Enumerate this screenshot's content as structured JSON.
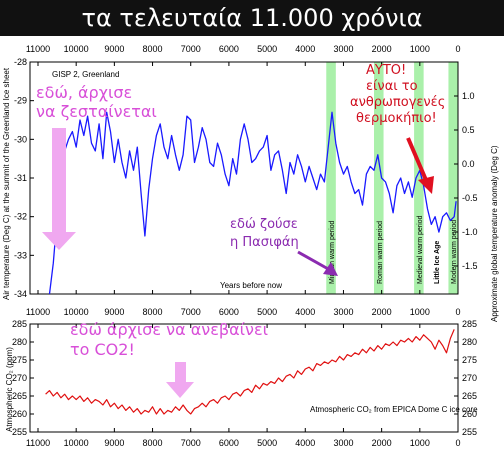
{
  "banner": {
    "title": "τα τελευταία 11.000 χρόνια"
  },
  "top_chart": {
    "inner_label": "GISP 2, Greenland",
    "xlabel": "Years before now",
    "ylabel_left": "Air temperature (Deg C) at the summit of the Greenland Ice sheet",
    "ylabel_right": "Approximate global temperature anomaly (Deg C)",
    "x_ticks": [
      "11000",
      "10000",
      "9000",
      "8000",
      "7000",
      "6000",
      "5000",
      "4000",
      "3000",
      "2000",
      "1000",
      "0"
    ],
    "y_ticks_left": [
      "-28",
      "-29",
      "-30",
      "-31",
      "-32",
      "-33",
      "-34"
    ],
    "y_ticks_right": [
      "1.0",
      "0.5",
      "0.0",
      "-0.5",
      "-1.0",
      "-1.5"
    ],
    "periods": [
      {
        "label": "Minoan warm period",
        "start": 3450,
        "end": 3200,
        "color": "#aaf0aa",
        "text_color": "#000000"
      },
      {
        "label": "Roman warm period",
        "start": 2200,
        "end": 1950,
        "color": "#aaf0aa",
        "text_color": "#000000"
      },
      {
        "label": "Medieval warm period",
        "start": 1150,
        "end": 900,
        "color": "#aaf0aa",
        "text_color": "#000000"
      },
      {
        "label": "Little Ice Age",
        "start": 700,
        "end": 450,
        "color": "#ffffff",
        "text_color": "#0000cc"
      },
      {
        "label": "Modern warm period",
        "start": 250,
        "end": 0,
        "color": "#aaf0aa",
        "text_color": "#000000"
      }
    ]
  },
  "bottom_chart": {
    "ylabel": "Atmospheric CO₂ (ppm)",
    "source": "Atmospheric CO₂ from EPICA Dome C ice core",
    "x_ticks": [
      "11000",
      "10000",
      "9000",
      "8000",
      "7000",
      "6000",
      "5000",
      "4000",
      "3000",
      "2000",
      "1000",
      "0"
    ],
    "y_ticks": [
      "285",
      "280",
      "275",
      "270",
      "265",
      "260",
      "255"
    ]
  },
  "annotations": {
    "warming_line1": "εδώ, άρχισε",
    "warming_line2": "να ζεσταίνεται",
    "pasiphae_line1": "εδώ ζούσε",
    "pasiphae_line2": "η Πασιφάη",
    "anthro_line1": "ΑΥΤΟ!",
    "anthro_line2": "είναι το",
    "anthro_line3": "ανθρωπογενές",
    "anthro_line4": "θερμοκήπιο!",
    "co2_line1": "εδώ άρχισε να ανεβαίνει",
    "co2_line2": "το CO2!"
  },
  "colors": {
    "temp_line": "#1a1aff",
    "co2_line": "#e01010",
    "warm_band": "#aaf0aa",
    "pink_arrow": "#f0a8f0",
    "purple_arrow": "#8b2bb0",
    "red_arrow": "#e01020"
  },
  "chart_data": [
    {
      "type": "line",
      "title": "GISP 2, Greenland",
      "xlabel": "Years before now",
      "ylabel": "Air temperature (Deg C) at the summit of the Greenland Ice sheet",
      "xlim": [
        11000,
        0
      ],
      "ylim": [
        -34,
        -28
      ],
      "series": [
        {
          "name": "GISP 2, Greenland",
          "x": [
            10700,
            10600,
            10500,
            10400,
            10300,
            10200,
            10100,
            10000,
            9900,
            9800,
            9700,
            9600,
            9500,
            9400,
            9300,
            9200,
            9100,
            9000,
            8900,
            8800,
            8700,
            8600,
            8500,
            8400,
            8300,
            8200,
            8100,
            8000,
            7900,
            7800,
            7700,
            7600,
            7500,
            7400,
            7300,
            7200,
            7100,
            7000,
            6900,
            6800,
            6700,
            6600,
            6500,
            6400,
            6300,
            6200,
            6100,
            6000,
            5900,
            5800,
            5700,
            5600,
            5500,
            5400,
            5300,
            5200,
            5100,
            5000,
            4900,
            4800,
            4700,
            4600,
            4500,
            4400,
            4300,
            4200,
            4100,
            4000,
            3900,
            3800,
            3700,
            3600,
            3500,
            3400,
            3300,
            3200,
            3100,
            3000,
            2900,
            2800,
            2700,
            2600,
            2500,
            2400,
            2300,
            2200,
            2100,
            2000,
            1900,
            1800,
            1700,
            1600,
            1500,
            1400,
            1300,
            1200,
            1100,
            1000,
            900,
            800,
            700,
            600,
            500,
            400,
            300,
            200,
            100,
            50
          ],
          "y": [
            -34.0,
            -33.2,
            -32.0,
            -31.0,
            -30.3,
            -30.0,
            -29.8,
            -30.2,
            -29.5,
            -29.9,
            -29.4,
            -30.1,
            -30.3,
            -29.6,
            -30.5,
            -29.3,
            -29.8,
            -30.6,
            -30.0,
            -30.6,
            -31.0,
            -30.3,
            -30.8,
            -30.2,
            -31.4,
            -32.5,
            -31.3,
            -30.5,
            -29.9,
            -29.6,
            -30.2,
            -30.5,
            -29.9,
            -30.4,
            -30.8,
            -30.4,
            -29.4,
            -29.5,
            -30.6,
            -30.2,
            -29.7,
            -30.0,
            -30.6,
            -30.7,
            -30.1,
            -30.4,
            -30.9,
            -31.2,
            -30.5,
            -30.9,
            -30.0,
            -29.6,
            -30.0,
            -30.6,
            -30.5,
            -30.3,
            -30.2,
            -29.9,
            -30.8,
            -30.4,
            -30.3,
            -30.8,
            -31.4,
            -30.6,
            -30.9,
            -30.4,
            -30.7,
            -31.1,
            -30.7,
            -31.0,
            -31.3,
            -30.9,
            -31.1,
            -30.2,
            -29.3,
            -30.1,
            -30.6,
            -30.9,
            -30.7,
            -31.1,
            -31.4,
            -31.3,
            -31.7,
            -30.9,
            -30.7,
            -30.8,
            -30.4,
            -31.0,
            -31.1,
            -31.4,
            -31.9,
            -31.2,
            -31.0,
            -31.4,
            -31.1,
            -31.5,
            -31.0,
            -30.8,
            -31.2,
            -31.8,
            -32.2,
            -32.0,
            -32.4,
            -32.0,
            -31.9,
            -32.1,
            -32.0,
            -31.6
          ]
        }
      ],
      "secondary_y": {
        "label": "Approximate global temperature anomaly (Deg C)",
        "ylim": [
          -1.5,
          1.0
        ]
      }
    },
    {
      "type": "line",
      "xlabel": "",
      "ylabel": "Atmospheric CO₂ (ppm)",
      "xlim": [
        11000,
        0
      ],
      "ylim": [
        255,
        285
      ],
      "series": [
        {
          "name": "Atmospheric CO₂ from EPICA Dome C ice core",
          "x": [
            10800,
            10700,
            10600,
            10500,
            10400,
            10300,
            10200,
            10100,
            10000,
            9900,
            9800,
            9700,
            9600,
            9500,
            9400,
            9300,
            9200,
            9100,
            9000,
            8900,
            8800,
            8700,
            8600,
            8500,
            8400,
            8300,
            8200,
            8100,
            8000,
            7900,
            7800,
            7700,
            7600,
            7500,
            7400,
            7300,
            7200,
            7100,
            7000,
            6900,
            6800,
            6700,
            6600,
            6500,
            6400,
            6300,
            6200,
            6100,
            6000,
            5900,
            5800,
            5700,
            5600,
            5500,
            5400,
            5300,
            5200,
            5100,
            5000,
            4900,
            4800,
            4700,
            4600,
            4500,
            4400,
            4300,
            4200,
            4100,
            4000,
            3900,
            3800,
            3700,
            3600,
            3500,
            3400,
            3300,
            3200,
            3100,
            3000,
            2900,
            2800,
            2700,
            2600,
            2500,
            2400,
            2300,
            2200,
            2100,
            2000,
            1900,
            1800,
            1700,
            1600,
            1500,
            1400,
            1300,
            1200,
            1100,
            1000,
            900,
            800,
            700,
            600,
            500,
            400,
            300,
            200,
            100
          ],
          "y": [
            265.5,
            266.5,
            265.0,
            266.0,
            264.5,
            265.5,
            264.0,
            265.0,
            264.0,
            265.0,
            263.5,
            264.5,
            263.0,
            264.0,
            263.5,
            262.5,
            264.0,
            262.0,
            263.0,
            261.5,
            262.5,
            261.0,
            262.0,
            260.5,
            261.5,
            260.0,
            261.0,
            260.5,
            262.0,
            260.0,
            261.5,
            260.0,
            261.0,
            260.5,
            262.0,
            261.0,
            262.5,
            261.0,
            260.0,
            261.5,
            262.0,
            263.0,
            262.0,
            263.5,
            264.0,
            263.0,
            264.5,
            265.0,
            264.0,
            265.5,
            266.0,
            265.0,
            266.5,
            267.0,
            266.0,
            268.0,
            267.0,
            268.5,
            268.0,
            269.0,
            268.5,
            270.0,
            269.0,
            270.5,
            271.0,
            270.0,
            272.0,
            271.0,
            272.5,
            273.0,
            272.0,
            274.0,
            273.5,
            274.5,
            274.0,
            275.0,
            274.5,
            276.0,
            275.0,
            276.5,
            276.0,
            277.0,
            276.5,
            278.0,
            277.0,
            278.5,
            277.5,
            279.0,
            278.0,
            279.5,
            279.0,
            280.0,
            279.0,
            280.5,
            280.0,
            281.0,
            280.0,
            281.5,
            280.5,
            282.0,
            281.0,
            280.0,
            278.0,
            280.5,
            279.0,
            277.0,
            281.0,
            283.5
          ]
        }
      ]
    }
  ]
}
